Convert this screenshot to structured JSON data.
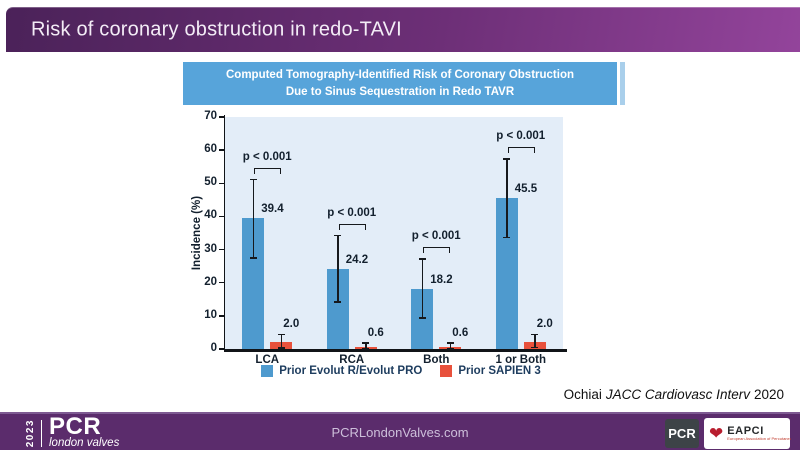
{
  "header": {
    "title": "Risk of coronary obstruction in redo-TAVI"
  },
  "citation": {
    "author": "Ochiai",
    "journal": "JACC Cardiovasc Interv",
    "year": "2020"
  },
  "footer": {
    "year_vertical": "2023",
    "logo_main": "PCR",
    "logo_sub": "london valves",
    "website": "PCRLondonValves.com",
    "pcr_badge": "PCR",
    "eapci_name": "EAPCI",
    "eapci_tagline": "European Association of Percutaneous Cardiovascular Interventions"
  },
  "chart_data": {
    "type": "bar",
    "title_lines": [
      "Computed Tomography-Identified Risk of Coronary Obstruction",
      "Due to Sinus Sequestration in Redo TAVR"
    ],
    "ylabel": "Incidence (%)",
    "ylim": [
      0,
      70
    ],
    "yticks": [
      0,
      10,
      20,
      30,
      40,
      50,
      60,
      70
    ],
    "categories": [
      "LCA",
      "RCA",
      "Both",
      "1 or Both"
    ],
    "series": [
      {
        "name": "Prior Evolut R/Evolut PRO",
        "color": "#4e9ace",
        "values": [
          39.4,
          24.2,
          18.2,
          45.5
        ],
        "err": [
          [
            27.5,
            51.2
          ],
          [
            14.2,
            34.2
          ],
          [
            9.3,
            27.2
          ],
          [
            33.6,
            57.4
          ]
        ]
      },
      {
        "name": "Prior SAPIEN 3",
        "color": "#e8513c",
        "values": [
          2.0,
          0.6,
          0.6,
          2.0
        ],
        "err": [
          [
            0.3,
            4.4
          ],
          [
            0,
            1.8
          ],
          [
            0,
            1.8
          ],
          [
            0.4,
            4.4
          ]
        ]
      }
    ],
    "value_labels": [
      [
        "39.4",
        "24.2",
        "18.2",
        "45.5"
      ],
      [
        "2.0",
        "0.6",
        "0.6",
        "2.0"
      ]
    ],
    "p_labels": [
      "p < 0.001",
      "p < 0.001",
      "p < 0.001",
      "p < 0.001"
    ],
    "grid": false,
    "legend_position": "bottom",
    "plot_background": "#e3edf8"
  }
}
